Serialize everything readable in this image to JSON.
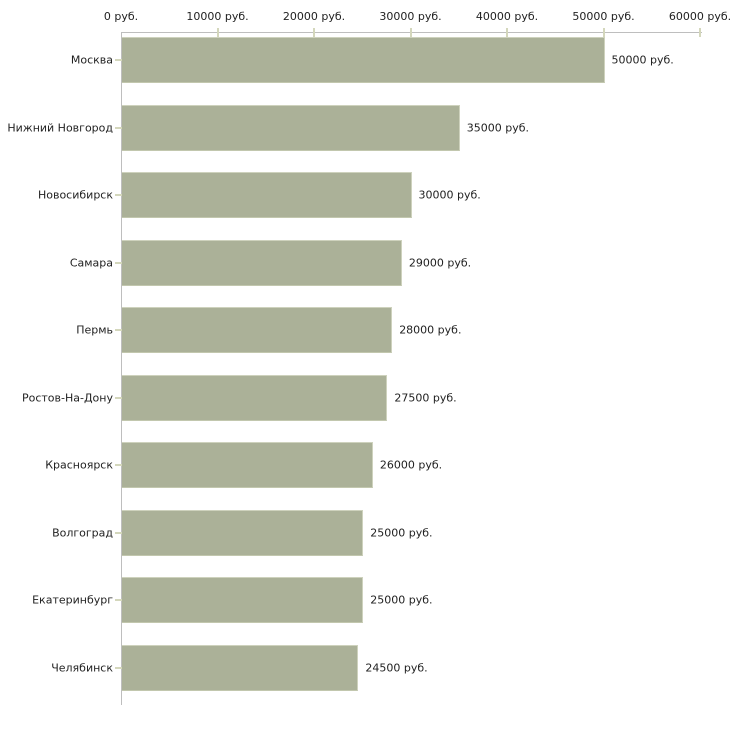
{
  "chart_data": {
    "type": "bar",
    "orientation": "horizontal",
    "title": "",
    "xlabel": "",
    "ylabel": "",
    "unit": "руб.",
    "xlim": [
      0,
      60000
    ],
    "grid": false,
    "legend": false,
    "categories": [
      "Москва",
      "Нижний Новгород",
      "Новосибирск",
      "Самара",
      "Пермь",
      "Ростов-На-Дону",
      "Красноярск",
      "Волгоград",
      "Екатеринбург",
      "Челябинск"
    ],
    "values": [
      50000,
      35000,
      30000,
      29000,
      28000,
      27500,
      26000,
      25000,
      25000,
      24500
    ],
    "value_labels": [
      "50000 руб.",
      "35000 руб.",
      "30000 руб.",
      "29000 руб.",
      "28000 руб.",
      "27500 руб.",
      "26000 руб.",
      "25000 руб.",
      "25000 руб.",
      "24500 руб."
    ],
    "x_ticks": [
      0,
      10000,
      20000,
      30000,
      40000,
      50000,
      60000
    ],
    "x_tick_labels": [
      "0 руб.",
      "10000 руб.",
      "20000 руб.",
      "30000 руб.",
      "40000 руб.",
      "50000 руб.",
      "60000 руб."
    ],
    "colors": {
      "bar_fill": "#abb198",
      "bar_highlight": "#ced2bd",
      "axis_line": "#bebebe",
      "tick_mark": "#d4d7bc",
      "text": "#222222",
      "background": "#ffffff"
    }
  }
}
